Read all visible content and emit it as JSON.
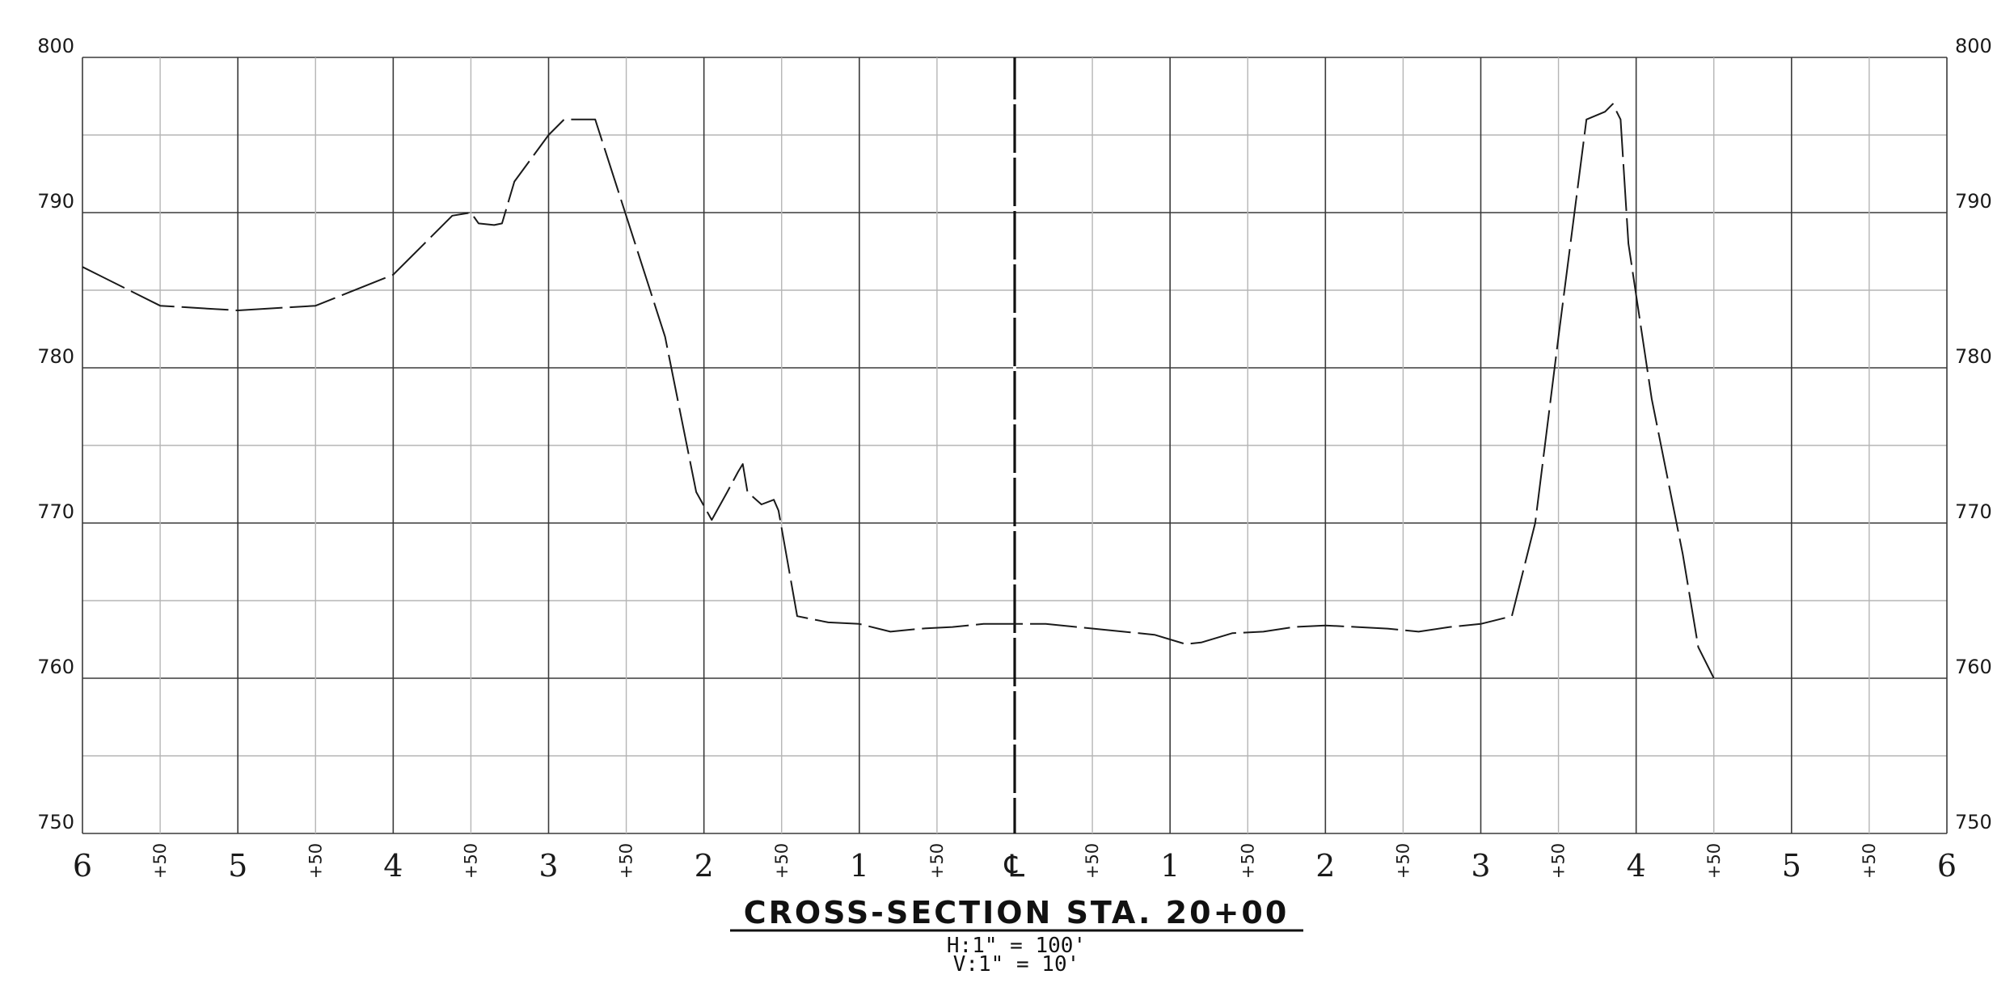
{
  "chart_data": {
    "type": "line",
    "title": "Cross-Section Sta. 20+00",
    "title_display": "CROSS-SECTION STA. 20+00",
    "scale_lines": [
      "H:1\" = 100'",
      "V:1\" = 10'"
    ],
    "centerline_label": "℄",
    "ylim": [
      750,
      800
    ],
    "xlim": [
      -600,
      600
    ],
    "y_ticks": [
      800,
      790,
      780,
      770,
      760,
      750
    ],
    "y_tick_labels": [
      "800",
      "790",
      "780",
      "770",
      "760",
      "750"
    ],
    "x_major_ticks": [
      -600,
      -500,
      -400,
      -300,
      -200,
      -100,
      100,
      200,
      300,
      400,
      500,
      600
    ],
    "x_major_labels": [
      "6",
      "5",
      "4",
      "3",
      "2",
      "1",
      "1",
      "2",
      "3",
      "4",
      "5",
      "6"
    ],
    "x_minor_ticks": [
      -550,
      -450,
      -350,
      -250,
      -150,
      -50,
      50,
      150,
      250,
      350,
      450,
      550
    ],
    "x_minor_label": "+50",
    "grid": true,
    "line_style": "dashed",
    "series": [
      {
        "values_xy": [
          [
            -600,
            786.5
          ],
          [
            -550,
            784
          ],
          [
            -500,
            783.7
          ],
          [
            -450,
            784
          ],
          [
            -400,
            786
          ],
          [
            -380,
            788
          ],
          [
            -362,
            789.8
          ],
          [
            -350,
            790
          ],
          [
            -345,
            789.3
          ],
          [
            -335,
            789.2
          ],
          [
            -330,
            789.3
          ],
          [
            -322,
            792
          ],
          [
            -300,
            795
          ],
          [
            -290,
            796
          ],
          [
            -270,
            796
          ],
          [
            -225,
            782
          ],
          [
            -205,
            772
          ],
          [
            -195,
            770.2
          ],
          [
            -185,
            772
          ],
          [
            -178,
            773.3
          ],
          [
            -175,
            773.8
          ],
          [
            -172,
            772
          ],
          [
            -163,
            771.2
          ],
          [
            -155,
            771.5
          ],
          [
            -152,
            770.8
          ],
          [
            -140,
            764
          ],
          [
            -120,
            763.6
          ],
          [
            -100,
            763.5
          ],
          [
            -80,
            763
          ],
          [
            -60,
            763.2
          ],
          [
            -40,
            763.3
          ],
          [
            -20,
            763.5
          ],
          [
            0,
            763.5
          ],
          [
            20,
            763.5
          ],
          [
            40,
            763.3
          ],
          [
            70,
            763
          ],
          [
            90,
            762.8
          ],
          [
            110,
            762.2
          ],
          [
            120,
            762.3
          ],
          [
            140,
            762.9
          ],
          [
            160,
            763
          ],
          [
            180,
            763.3
          ],
          [
            200,
            763.4
          ],
          [
            220,
            763.3
          ],
          [
            240,
            763.2
          ],
          [
            260,
            763
          ],
          [
            280,
            763.3
          ],
          [
            300,
            763.5
          ],
          [
            320,
            764
          ],
          [
            335,
            770
          ],
          [
            350,
            782
          ],
          [
            368,
            796
          ],
          [
            380,
            796.5
          ],
          [
            385,
            797
          ],
          [
            390,
            796
          ],
          [
            395,
            788
          ],
          [
            410,
            778
          ],
          [
            430,
            768
          ],
          [
            440,
            762
          ],
          [
            450,
            760
          ]
        ]
      }
    ]
  }
}
